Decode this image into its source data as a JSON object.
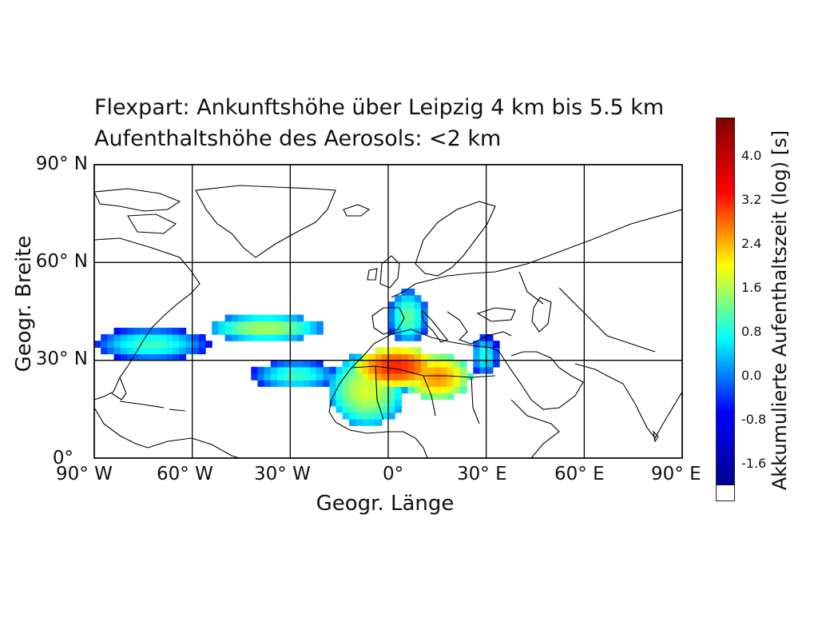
{
  "title_line1": "Flexpart: Ankunftshöhe über Leipzig 4 km bis 5.5 km",
  "title_line2": "Aufenthaltshöhe des Aerosols: <2 km",
  "axes": {
    "xlabel": "Geogr. Länge",
    "ylabel": "Geogr. Breite",
    "xlim": [
      -90,
      90
    ],
    "ylim": [
      0,
      90
    ],
    "xticks": [
      {
        "value": -90,
        "label": "90° W"
      },
      {
        "value": -60,
        "label": "60° W"
      },
      {
        "value": -30,
        "label": "30° W"
      },
      {
        "value": 0,
        "label": "0°"
      },
      {
        "value": 30,
        "label": "30° E"
      },
      {
        "value": 60,
        "label": "60° E"
      },
      {
        "value": 90,
        "label": "90° E"
      }
    ],
    "yticks": [
      {
        "value": 0,
        "label": "0°"
      },
      {
        "value": 30,
        "label": "30° N"
      },
      {
        "value": 60,
        "label": "60° N"
      },
      {
        "value": 90,
        "label": "90° N"
      }
    ],
    "grid": true
  },
  "colorbar": {
    "title": "Akkumulierte Aufenthaltszeit (log) [s]",
    "range": [
      -2.0,
      4.7
    ],
    "ticks": [
      "4.0",
      "3.2",
      "2.4",
      "1.6",
      "0.8",
      "0.0",
      "-0.8",
      "-1.6"
    ],
    "colormap": [
      "#00008f",
      "#0000ff",
      "#00ffff",
      "#ffff00",
      "#ff0000",
      "#800000"
    ]
  },
  "chart_data": {
    "type": "heatmap",
    "description_units": "log10 accumulated residence time [s]",
    "plumes": [
      {
        "lon": [
          -90,
          -55
        ],
        "lat": [
          30,
          40
        ],
        "peak": 1.0
      },
      {
        "lon": [
          -55,
          -20
        ],
        "lat": [
          36,
          44
        ],
        "peak": 1.6
      },
      {
        "lon": [
          -42,
          -15
        ],
        "lat": [
          21,
          30
        ],
        "peak": 1.0
      },
      {
        "lon": [
          -18,
          5
        ],
        "lat": [
          10,
          32
        ],
        "peak": 1.8
      },
      {
        "lon": [
          -10,
          15
        ],
        "lat": [
          22,
          34
        ],
        "peak": 3.2
      },
      {
        "lon": [
          5,
          25
        ],
        "lat": [
          18,
          32
        ],
        "peak": 2.6
      },
      {
        "lon": [
          0,
          12
        ],
        "lat": [
          35,
          52
        ],
        "peak": 1.2
      },
      {
        "lon": [
          25,
          34
        ],
        "lat": [
          25,
          38
        ],
        "peak": 0.8
      }
    ]
  }
}
